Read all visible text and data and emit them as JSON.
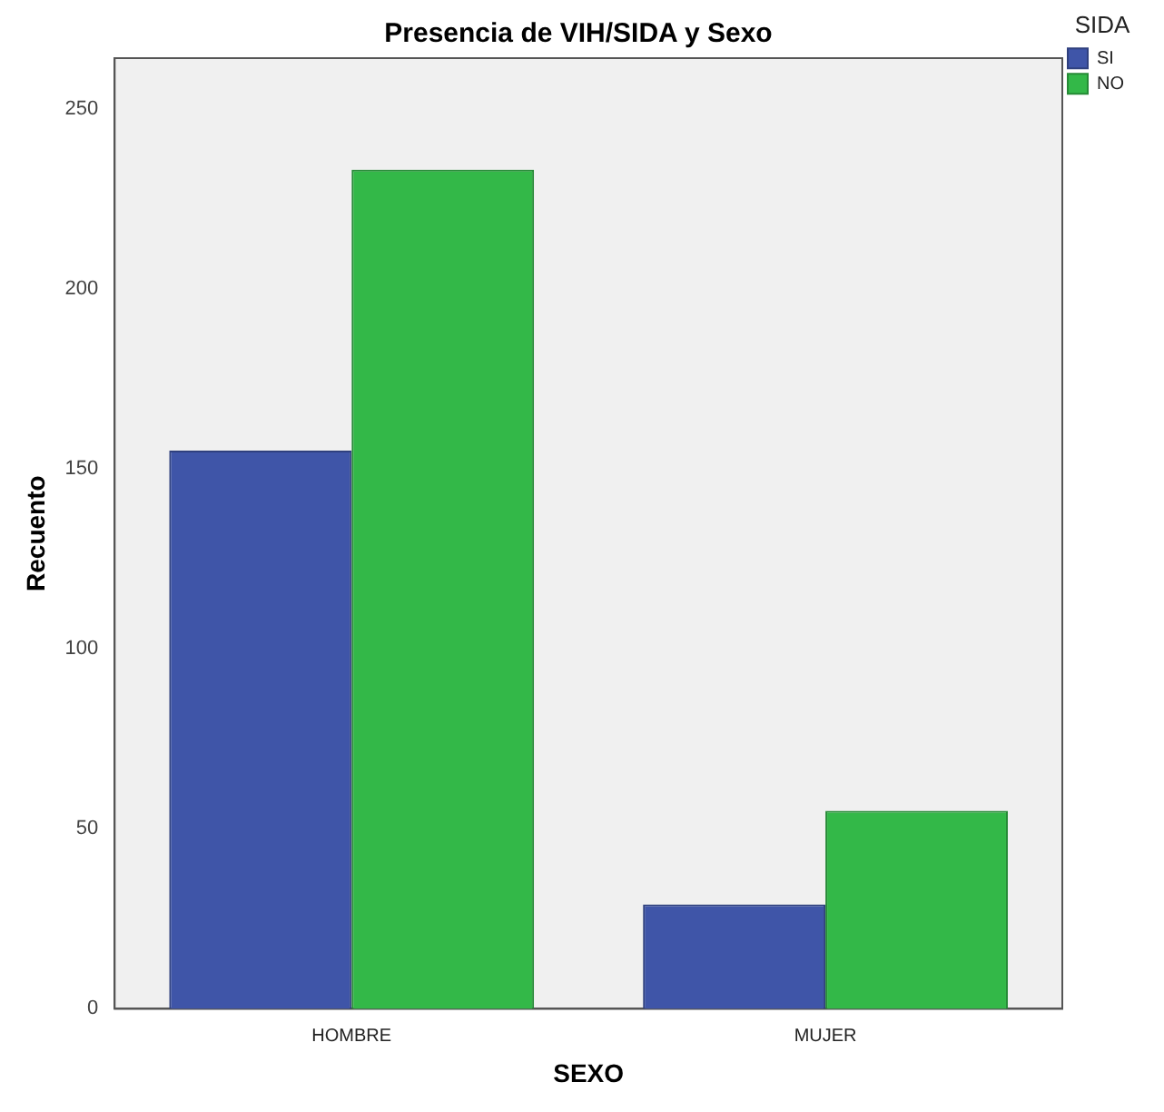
{
  "chart_data": {
    "type": "bar",
    "title": "Presencia de VIH/SIDA y Sexo",
    "xlabel": "SEXO",
    "ylabel": "Recuento",
    "legend_title": "SIDA",
    "categories": [
      "HOMBRE",
      "MUJER"
    ],
    "series": [
      {
        "name": "SI",
        "color": "#3f55a8",
        "values": [
          155,
          29
        ]
      },
      {
        "name": "NO",
        "color": "#33b848",
        "values": [
          233,
          55
        ]
      }
    ],
    "ylim": [
      0,
      264
    ],
    "yticks": [
      0,
      50,
      100,
      150,
      200,
      250
    ],
    "grid": false,
    "legend": "top right"
  }
}
